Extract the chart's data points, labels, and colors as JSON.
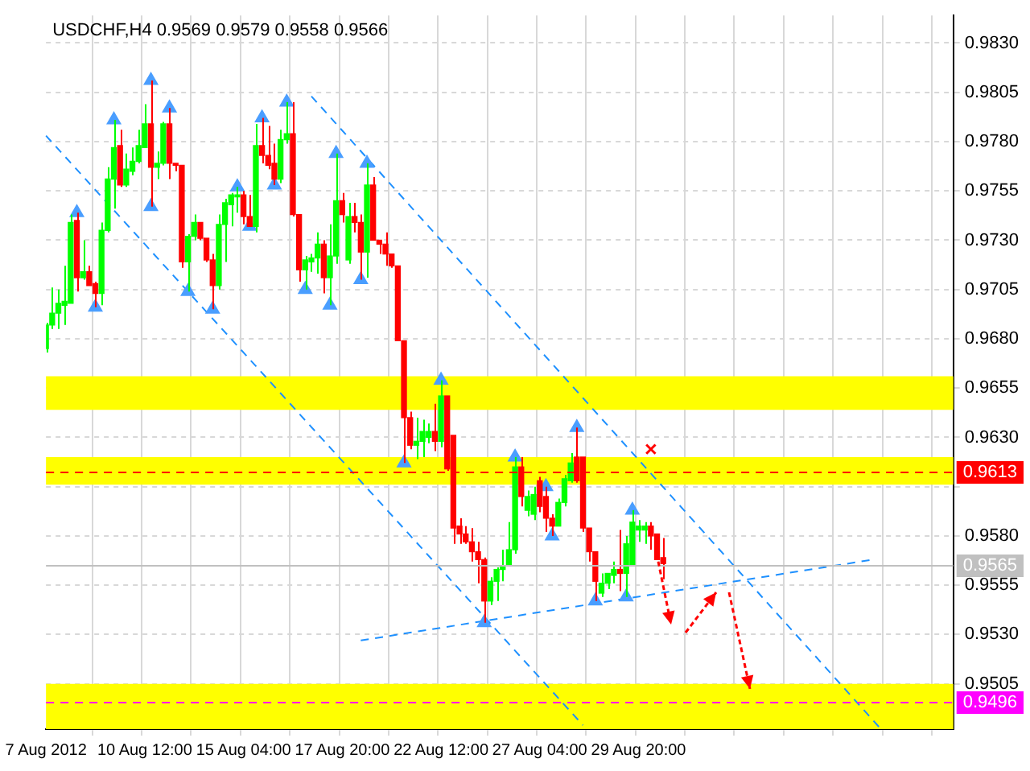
{
  "chart_data": {
    "type": "candlestick",
    "title": "USDCHF,H4 0.9569 0.9579 0.9558 0.9566",
    "categories": [
      "7 Aug 2012",
      null,
      null,
      null,
      null,
      null,
      null,
      null,
      null,
      null,
      null,
      null,
      null,
      null,
      null,
      null,
      "10 Aug 12:00",
      null,
      null,
      null,
      null,
      null,
      null,
      null,
      null,
      null,
      null,
      null,
      null,
      null,
      null,
      null,
      "15 Aug 04:00",
      null,
      null,
      null,
      null,
      null,
      null,
      null,
      null,
      null,
      null,
      null,
      null,
      null,
      null,
      null,
      "17 Aug 20:00",
      null,
      null,
      null,
      null,
      null,
      null,
      null,
      null,
      null,
      null,
      null,
      null,
      null,
      null,
      null,
      "22 Aug 12:00",
      null,
      null,
      null,
      null,
      null,
      null,
      null,
      null,
      null,
      null,
      null,
      null,
      null,
      null,
      null,
      "27 Aug 04:00",
      null,
      null,
      null,
      null,
      null,
      null,
      null,
      null,
      null,
      null,
      null,
      null,
      null,
      null,
      null,
      "29 Aug 20:00",
      null,
      null,
      null,
      null,
      null,
      null,
      null,
      null,
      null,
      null,
      null,
      null,
      null,
      null,
      null,
      null,
      null,
      null,
      null,
      null,
      null,
      null,
      null,
      null,
      null,
      null,
      null,
      null,
      null,
      null,
      null,
      null,
      null,
      null,
      null,
      null,
      null,
      null,
      null,
      null,
      null,
      null,
      null,
      null,
      null,
      null,
      null,
      null,
      null,
      null,
      null
    ],
    "colors": [
      "#00ff00",
      "#00ff00",
      "#00ff00",
      "#00ff00",
      "#00ff00",
      "#ff0000",
      "#00ff00",
      "#ff0000",
      "#ff0000",
      "#00ff00",
      "#00ff00",
      "#00ff00",
      "#ff0000",
      "#00ff00",
      "#00ff00",
      "#00ff00",
      "#00ff00",
      "#ff0000",
      "#00ff00",
      "#00ff00",
      "#ff0000",
      "#ff0000",
      "#ff0000",
      "#00ff00",
      "#00ff00",
      "#ff0000",
      "#ff0000",
      "#ff0000",
      "#00ff00",
      "#00ff00",
      "#00ff00",
      "#00ff00",
      "#ff0000",
      "#ff0000",
      "#00ff00",
      "#ff0000",
      "#ff0000",
      "#ff0000",
      "#00ff00",
      "#00ff00",
      "#ff0000",
      "#ff0000",
      "#00ff00",
      "#00ff00",
      "#00ff00",
      "#ff0000",
      "#00ff00",
      "#00ff00",
      "#ff0000",
      "#00ff00",
      "#ff0000",
      "#ff0000",
      "#00ff00",
      "#ff0000",
      "#ff0000",
      "#ff0000",
      "#ff0000",
      "#ff0000",
      "#ff0000",
      "#ff0000",
      "#00ff00",
      "#00ff00",
      "#00ff00",
      "#ff0000",
      "#00ff00",
      "#ff0000",
      "#ff0000",
      "#ff0000",
      "#ff0000",
      "#ff0000",
      "#ff0000",
      "#ff0000",
      "#00ff00",
      "#00ff00",
      "#00ff00",
      "#00ff00",
      "#00ff00",
      "#ff0000",
      "#00ff00",
      "#00ff00",
      "#ff0000",
      "#ff0000",
      "#ff0000",
      "#00ff00",
      "#00ff00",
      "#00ff00",
      "#ff0000",
      "#ff0000",
      "#ff0000",
      "#ff0000",
      "#00ff00",
      "#00ff00",
      "#00ff00",
      "#ff0000",
      "#00ff00",
      "#00ff00",
      "#00ff00",
      "#00ff00",
      "#ff0000",
      "#ff0000",
      "#ff0000",
      null,
      null,
      null,
      null,
      null,
      null,
      null,
      null,
      null,
      null,
      null,
      null,
      null,
      null,
      null,
      null,
      null,
      null,
      null,
      null,
      null,
      null,
      null,
      null,
      null,
      null,
      null,
      null,
      null,
      null,
      null,
      null,
      null,
      null,
      null,
      null,
      null,
      null,
      null,
      null,
      null,
      null,
      null,
      null,
      null,
      null,
      null
    ],
    "ohlc": [
      [
        0.9675,
        0.9688,
        0.9673,
        0.9687
      ],
      [
        0.9687,
        0.9706,
        0.9685,
        0.9693
      ],
      [
        0.9693,
        0.9705,
        0.9685,
        0.9698
      ],
      [
        0.9697,
        0.9717,
        0.9687,
        0.9699
      ],
      [
        0.9698,
        0.9743,
        0.9698,
        0.9739
      ],
      [
        0.974,
        0.9744,
        0.9704,
        0.9711
      ],
      [
        0.9711,
        0.973,
        0.971,
        0.9714
      ],
      [
        0.9714,
        0.9717,
        0.9707,
        0.9707
      ],
      [
        0.9708,
        0.9709,
        0.9696,
        0.9703
      ],
      [
        0.9703,
        0.9739,
        0.9697,
        0.9735
      ],
      [
        0.9735,
        0.9767,
        0.9734,
        0.9761
      ],
      [
        0.9761,
        0.9791,
        0.9746,
        0.9777
      ],
      [
        0.9778,
        0.9786,
        0.9757,
        0.9758
      ],
      [
        0.9758,
        0.9774,
        0.9757,
        0.9766
      ],
      [
        0.9765,
        0.9777,
        0.9763,
        0.977
      ],
      [
        0.977,
        0.9786,
        0.9769,
        0.9778
      ],
      [
        0.9777,
        0.9799,
        0.9777,
        0.9789
      ],
      [
        0.9789,
        0.9811,
        0.9747,
        0.9767
      ],
      [
        0.9767,
        0.9775,
        0.9761,
        0.9769
      ],
      [
        0.9769,
        0.979,
        0.9768,
        0.9789
      ],
      [
        0.9789,
        0.9797,
        0.9761,
        0.9769
      ],
      [
        0.9769,
        0.9769,
        0.9765,
        0.9768
      ],
      [
        0.9768,
        0.9768,
        0.9716,
        0.9719
      ],
      [
        0.9719,
        0.9733,
        0.9704,
        0.9732
      ],
      [
        0.9732,
        0.9743,
        0.973,
        0.9739
      ],
      [
        0.9739,
        0.9739,
        0.973,
        0.9731
      ],
      [
        0.9731,
        0.9731,
        0.9719,
        0.972
      ],
      [
        0.972,
        0.9723,
        0.9695,
        0.9707
      ],
      [
        0.9707,
        0.9743,
        0.9705,
        0.9738
      ],
      [
        0.9738,
        0.9751,
        0.9719,
        0.9749
      ],
      [
        0.9748,
        0.9754,
        0.9737,
        0.9753
      ],
      [
        0.9752,
        0.9757,
        0.9744,
        0.9753
      ],
      [
        0.9753,
        0.9755,
        0.9738,
        0.9742
      ],
      [
        0.9742,
        0.9753,
        0.9737,
        0.9737
      ],
      [
        0.9737,
        0.9789,
        0.9734,
        0.9778
      ],
      [
        0.9778,
        0.9792,
        0.9769,
        0.9773
      ],
      [
        0.9773,
        0.9788,
        0.9766,
        0.9768
      ],
      [
        0.9769,
        0.9779,
        0.9758,
        0.9761
      ],
      [
        0.9761,
        0.9786,
        0.9759,
        0.9781
      ],
      [
        0.9781,
        0.98,
        0.9779,
        0.9784
      ],
      [
        0.9784,
        0.98,
        0.9742,
        0.9743
      ],
      [
        0.9743,
        0.9743,
        0.9709,
        0.9715
      ],
      [
        0.9715,
        0.9722,
        0.9705,
        0.972
      ],
      [
        0.9719,
        0.9723,
        0.9714,
        0.9721
      ],
      [
        0.9721,
        0.9734,
        0.9713,
        0.9728
      ],
      [
        0.9728,
        0.973,
        0.9703,
        0.9711
      ],
      [
        0.9711,
        0.9738,
        0.9697,
        0.9722
      ],
      [
        0.9722,
        0.9774,
        0.9718,
        0.975
      ],
      [
        0.975,
        0.9754,
        0.9739,
        0.9743
      ],
      [
        0.972,
        0.9749,
        0.9718,
        0.9742
      ],
      [
        0.9742,
        0.9749,
        0.9734,
        0.9739
      ],
      [
        0.9739,
        0.9743,
        0.971,
        0.9724
      ],
      [
        0.9724,
        0.9769,
        0.9711,
        0.9758
      ],
      [
        0.9758,
        0.9762,
        0.973,
        0.973
      ],
      [
        0.973,
        0.973,
        0.9723,
        0.9728
      ],
      [
        0.9728,
        0.9734,
        0.9717,
        0.9723
      ],
      [
        0.9723,
        0.9723,
        0.9716,
        0.9717
      ],
      [
        0.9717,
        0.9717,
        0.9679,
        0.9679
      ],
      [
        0.9679,
        0.9679,
        0.9617,
        0.964
      ],
      [
        0.964,
        0.9643,
        0.9624,
        0.9626
      ],
      [
        0.9626,
        0.964,
        0.9619,
        0.9628
      ],
      [
        0.9628,
        0.9639,
        0.962,
        0.9633
      ],
      [
        0.963,
        0.9637,
        0.9627,
        0.9633
      ],
      [
        0.9633,
        0.9647,
        0.9623,
        0.9628
      ],
      [
        0.9628,
        0.9659,
        0.9625,
        0.9651
      ],
      [
        0.9651,
        0.9651,
        0.9613,
        0.9614
      ],
      [
        0.9631,
        0.9631,
        0.9576,
        0.9584
      ],
      [
        0.9585,
        0.9589,
        0.9576,
        0.9581
      ],
      [
        0.9581,
        0.9585,
        0.9576,
        0.9577
      ],
      [
        0.9577,
        0.9584,
        0.9567,
        0.9572
      ],
      [
        0.9572,
        0.9577,
        0.9556,
        0.9568
      ],
      [
        0.9568,
        0.9569,
        0.9536,
        0.9547
      ],
      [
        0.9547,
        0.9559,
        0.9545,
        0.9557
      ],
      [
        0.9557,
        0.9564,
        0.9547,
        0.9563
      ],
      [
        0.9563,
        0.9573,
        0.9557,
        0.9565
      ],
      [
        0.9565,
        0.9587,
        0.9565,
        0.9573
      ],
      [
        0.9573,
        0.962,
        0.9571,
        0.9615
      ],
      [
        0.9615,
        0.962,
        0.9595,
        0.96
      ],
      [
        0.9593,
        0.9603,
        0.959,
        0.96
      ],
      [
        0.9591,
        0.9605,
        0.9588,
        0.9601
      ],
      [
        0.9608,
        0.961,
        0.9592,
        0.9595
      ],
      [
        0.96,
        0.9605,
        0.9582,
        0.9589
      ],
      [
        0.9589,
        0.9591,
        0.958,
        0.9585
      ],
      [
        0.9585,
        0.9599,
        0.9585,
        0.9597
      ],
      [
        0.9597,
        0.9611,
        0.9595,
        0.9609
      ],
      [
        0.9608,
        0.9622,
        0.9607,
        0.9617
      ],
      [
        0.962,
        0.9635,
        0.9607,
        0.9608
      ],
      [
        0.962,
        0.962,
        0.9582,
        0.9584
      ],
      [
        0.9584,
        0.9584,
        0.9567,
        0.9572
      ],
      [
        0.9572,
        0.9572,
        0.9547,
        0.9557
      ],
      [
        0.9551,
        0.9561,
        0.9549,
        0.9556
      ],
      [
        0.9556,
        0.9561,
        0.9553,
        0.9561
      ],
      [
        0.956,
        0.9567,
        0.9556,
        0.9563
      ],
      [
        0.9563,
        0.9583,
        0.9552,
        0.9561
      ],
      [
        0.9561,
        0.958,
        0.9549,
        0.9576
      ],
      [
        0.9565,
        0.9593,
        0.9565,
        0.9587
      ],
      [
        0.9583,
        0.9588,
        0.9577,
        0.9585
      ],
      [
        0.9583,
        0.9587,
        0.9576,
        0.9585
      ],
      [
        0.9585,
        0.9587,
        0.9573,
        0.958
      ],
      [
        0.9581,
        0.9581,
        0.9568,
        0.9568
      ],
      [
        0.9569,
        0.9579,
        0.9558,
        0.9566
      ],
      null,
      null,
      null,
      null,
      null,
      null,
      null,
      null,
      null,
      null,
      null,
      null,
      null,
      null,
      null,
      null,
      null,
      null,
      null,
      null,
      null,
      null,
      null,
      null,
      null,
      null,
      null,
      null,
      null,
      null,
      null,
      null,
      null,
      null,
      null,
      null,
      null,
      null,
      null,
      null,
      null,
      null,
      null,
      null,
      null,
      null,
      null
    ],
    "series": [
      {
        "type": "scatter",
        "color": "#4a9eff",
        "marker": "triangle",
        "values": [
          null,
          null,
          null,
          null,
          null,
          0.9744,
          null,
          null,
          null,
          null,
          null,
          0.9791,
          null,
          null,
          null,
          null,
          null,
          0.9811,
          null,
          null,
          0.9797,
          null,
          null,
          null,
          null,
          null,
          null,
          null,
          null,
          null,
          null,
          0.9757,
          null,
          null,
          null,
          0.9792,
          null,
          null,
          null,
          0.98,
          null,
          null,
          null,
          null,
          null,
          null,
          null,
          0.9774,
          null,
          null,
          null,
          null,
          0.9769,
          null,
          null,
          null,
          null,
          null,
          null,
          null,
          null,
          null,
          null,
          null,
          0.9659,
          null,
          null,
          null,
          null,
          null,
          null,
          null,
          null,
          null,
          null,
          null,
          0.962,
          null,
          null,
          null,
          null,
          0.9605,
          null,
          null,
          null,
          null,
          0.9635,
          null,
          null,
          null,
          null,
          null,
          null,
          null,
          null,
          0.9593,
          null,
          null,
          null,
          null,
          null,
          null,
          null,
          null,
          null,
          null,
          null,
          null,
          null,
          null,
          null,
          null,
          null,
          null,
          null,
          null,
          null,
          null,
          null,
          null,
          null,
          null,
          null,
          null,
          null,
          null,
          null,
          null,
          null,
          null,
          null,
          null,
          null,
          null,
          null,
          null,
          null,
          null,
          null,
          null,
          null,
          null,
          null,
          null,
          null,
          null,
          null,
          null
        ]
      },
      {
        "type": "scatter",
        "color": "#4a9eff",
        "marker": "triangle",
        "values": [
          null,
          null,
          null,
          null,
          null,
          null,
          null,
          null,
          0.9696,
          null,
          null,
          null,
          null,
          null,
          null,
          null,
          null,
          0.9747,
          null,
          null,
          null,
          null,
          null,
          0.9704,
          null,
          null,
          null,
          0.9695,
          null,
          null,
          null,
          null,
          null,
          0.9737,
          null,
          null,
          null,
          0.9758,
          null,
          null,
          null,
          null,
          0.9705,
          null,
          null,
          null,
          0.9697,
          null,
          null,
          null,
          null,
          0.971,
          null,
          null,
          null,
          null,
          null,
          null,
          0.9617,
          null,
          null,
          null,
          null,
          null,
          null,
          null,
          null,
          null,
          null,
          null,
          null,
          0.9536,
          null,
          null,
          null,
          null,
          null,
          null,
          null,
          null,
          null,
          null,
          0.958,
          null,
          null,
          null,
          null,
          null,
          null,
          0.9547,
          null,
          null,
          null,
          null,
          0.9549,
          null,
          null,
          null,
          null,
          null,
          null,
          null,
          null,
          null,
          null,
          null,
          null,
          null,
          null,
          null,
          null,
          null,
          null,
          null,
          null,
          null,
          null,
          null,
          null,
          null,
          null,
          null,
          null,
          null,
          null,
          null,
          null,
          null,
          null,
          null,
          null,
          null,
          null,
          null,
          null,
          null,
          null,
          null,
          null,
          null,
          null,
          null,
          null,
          null,
          null,
          null,
          null,
          null
        ]
      },
      {
        "type": "line",
        "color": "#1e90ff",
        "line_style": "dashed",
        "marker": "none",
        "values": [
          0.9783,
          null,
          null,
          null,
          null,
          null,
          null,
          null,
          null,
          null,
          null,
          null,
          null,
          null,
          null,
          null,
          null,
          null,
          null,
          null,
          null,
          null,
          null,
          null,
          null,
          null,
          null,
          null,
          null,
          null,
          null,
          null,
          null,
          null,
          null,
          null,
          null,
          null,
          null,
          null,
          null,
          null,
          null,
          null,
          null,
          null,
          null,
          null,
          null,
          null,
          null,
          null,
          null,
          null,
          null,
          null,
          null,
          null,
          null,
          null,
          null,
          null,
          null,
          null,
          null,
          null,
          null,
          null,
          null,
          null,
          null,
          null,
          null,
          null,
          null,
          null,
          null,
          null,
          null,
          null,
          null,
          null,
          null,
          null,
          null,
          null,
          null,
          0.9484,
          null,
          null,
          null,
          null,
          null,
          null,
          null,
          null,
          null,
          null,
          null,
          null,
          null,
          null,
          null,
          null,
          null,
          null,
          null,
          null,
          null,
          null,
          null,
          null,
          null,
          null,
          null,
          null,
          null,
          null,
          null,
          null,
          null,
          null,
          null,
          null,
          null,
          null,
          null,
          null,
          null,
          null,
          null,
          null,
          null,
          null,
          null,
          null,
          null,
          null,
          null,
          null,
          null,
          null,
          null,
          null,
          null,
          null,
          null,
          null
        ]
      },
      {
        "type": "line",
        "color": "#1e90ff",
        "line_style": "dashed",
        "marker": "none",
        "values": [
          null,
          null,
          null,
          null,
          null,
          null,
          null,
          null,
          null,
          null,
          null,
          null,
          null,
          null,
          null,
          null,
          null,
          null,
          null,
          null,
          null,
          null,
          null,
          null,
          null,
          null,
          null,
          null,
          null,
          null,
          null,
          null,
          null,
          null,
          null,
          null,
          null,
          null,
          null,
          null,
          null,
          null,
          null,
          0.9803,
          null,
          null,
          null,
          null,
          null,
          null,
          null,
          null,
          null,
          null,
          null,
          null,
          null,
          null,
          null,
          null,
          null,
          null,
          null,
          null,
          null,
          null,
          null,
          null,
          null,
          null,
          null,
          null,
          null,
          null,
          null,
          null,
          null,
          null,
          null,
          null,
          null,
          null,
          null,
          null,
          null,
          null,
          null,
          null,
          null,
          null,
          null,
          null,
          null,
          null,
          null,
          null,
          null,
          null,
          null,
          null,
          null,
          null,
          null,
          null,
          null,
          null,
          null,
          null,
          null,
          null,
          null,
          null,
          null,
          null,
          null,
          null,
          null,
          null,
          null,
          null,
          null,
          null,
          null,
          null,
          null,
          null,
          null,
          null,
          null,
          null,
          null,
          null,
          null,
          null,
          null,
          0.9483,
          null,
          null,
          null,
          null,
          null,
          null,
          null,
          null,
          null,
          null,
          null,
          null
        ]
      },
      {
        "type": "line",
        "color": "#1e90ff",
        "line_style": "dashed",
        "marker": "none",
        "values": [
          null,
          null,
          null,
          null,
          null,
          null,
          null,
          null,
          null,
          null,
          null,
          null,
          null,
          null,
          null,
          null,
          null,
          null,
          null,
          null,
          null,
          null,
          null,
          null,
          null,
          null,
          null,
          null,
          null,
          null,
          null,
          null,
          null,
          null,
          null,
          null,
          null,
          null,
          null,
          null,
          null,
          null,
          null,
          null,
          null,
          null,
          null,
          null,
          null,
          null,
          null,
          0.9527,
          null,
          null,
          null,
          null,
          null,
          null,
          null,
          null,
          null,
          null,
          null,
          null,
          null,
          null,
          null,
          null,
          null,
          null,
          null,
          null,
          null,
          null,
          null,
          null,
          null,
          null,
          null,
          null,
          null,
          null,
          null,
          null,
          null,
          null,
          null,
          null,
          null,
          null,
          null,
          null,
          null,
          null,
          null,
          null,
          null,
          null,
          null,
          null,
          null,
          null,
          null,
          null,
          null,
          null,
          null,
          null,
          null,
          null,
          null,
          null,
          null,
          null,
          null,
          null,
          null,
          null,
          null,
          null,
          null,
          null,
          null,
          null,
          null,
          null,
          null,
          null,
          null,
          null,
          null,
          null,
          null,
          null,
          0.9568,
          null,
          null,
          null,
          null,
          null,
          null,
          null,
          null,
          null,
          null,
          null,
          null,
          null
        ]
      },
      {
        "type": "scatter",
        "color": "#ff0000",
        "marker": "cross",
        "values": [
          null,
          null,
          null,
          null,
          null,
          null,
          null,
          null,
          null,
          null,
          null,
          null,
          null,
          null,
          null,
          null,
          null,
          null,
          null,
          null,
          null,
          null,
          null,
          null,
          null,
          null,
          null,
          null,
          null,
          null,
          null,
          null,
          null,
          null,
          null,
          null,
          null,
          null,
          null,
          null,
          null,
          null,
          null,
          null,
          null,
          null,
          null,
          null,
          null,
          null,
          null,
          null,
          null,
          null,
          null,
          null,
          null,
          null,
          null,
          null,
          null,
          null,
          null,
          null,
          null,
          null,
          null,
          null,
          null,
          null,
          null,
          null,
          null,
          null,
          null,
          null,
          null,
          null,
          null,
          null,
          null,
          null,
          null,
          null,
          null,
          null,
          null,
          null,
          null,
          null,
          null,
          null,
          null,
          null,
          null,
          null,
          null,
          null,
          0.9624,
          null,
          null,
          null,
          null,
          null,
          null,
          null,
          null,
          null,
          null,
          null,
          null,
          null,
          null,
          null,
          null,
          null,
          null,
          null,
          null,
          null,
          null,
          null,
          null,
          null,
          null,
          null,
          null,
          null,
          null,
          null,
          null,
          null,
          null,
          null,
          null,
          null,
          null,
          null,
          null,
          null,
          null,
          null,
          null,
          null,
          null,
          null,
          null,
          null
        ]
      }
    ],
    "bands": [
      {
        "axis": "y",
        "from": 0.9644,
        "to": 0.9661,
        "color": "#ffff00"
      },
      {
        "axis": "y",
        "from": 0.9606,
        "to": 0.962,
        "color": "#ffff00"
      },
      {
        "axis": "y",
        "from": 0.9482,
        "to": 0.9505,
        "color": "#ffff00"
      }
    ],
    "ref_lines": [
      {
        "axis": "y",
        "value": 0.9613,
        "label": "0.9613",
        "color": "#ff0000",
        "line_style": "dashed"
      },
      {
        "axis": "y",
        "value": 0.9496,
        "label": "0.9496",
        "color": "#ff00ff",
        "line_style": "dashed"
      },
      {
        "axis": "y",
        "value": 0.9565,
        "label": "0.9565",
        "color": "#c0c0c0",
        "line_style": "solid"
      }
    ],
    "ylim": [
      0.9482,
      0.9844
    ],
    "yticks": [
      0.9505,
      {
        "value": 0.953,
        "label": "0.9530"
      },
      0.9555,
      {
        "value": 0.958,
        "label": "0.9580"
      },
      {
        "value": 0.9605,
        "label": null
      },
      {
        "value": 0.963,
        "label": "0.9630"
      },
      0.9655,
      {
        "value": 0.968,
        "label": "0.9680"
      },
      0.9705,
      {
        "value": 0.973,
        "label": "0.9730"
      },
      0.9755,
      {
        "value": 0.978,
        "label": "0.9780"
      },
      0.9805,
      {
        "value": 0.983,
        "label": "0.9830"
      }
    ],
    "grid": true,
    "legend": false
  }
}
